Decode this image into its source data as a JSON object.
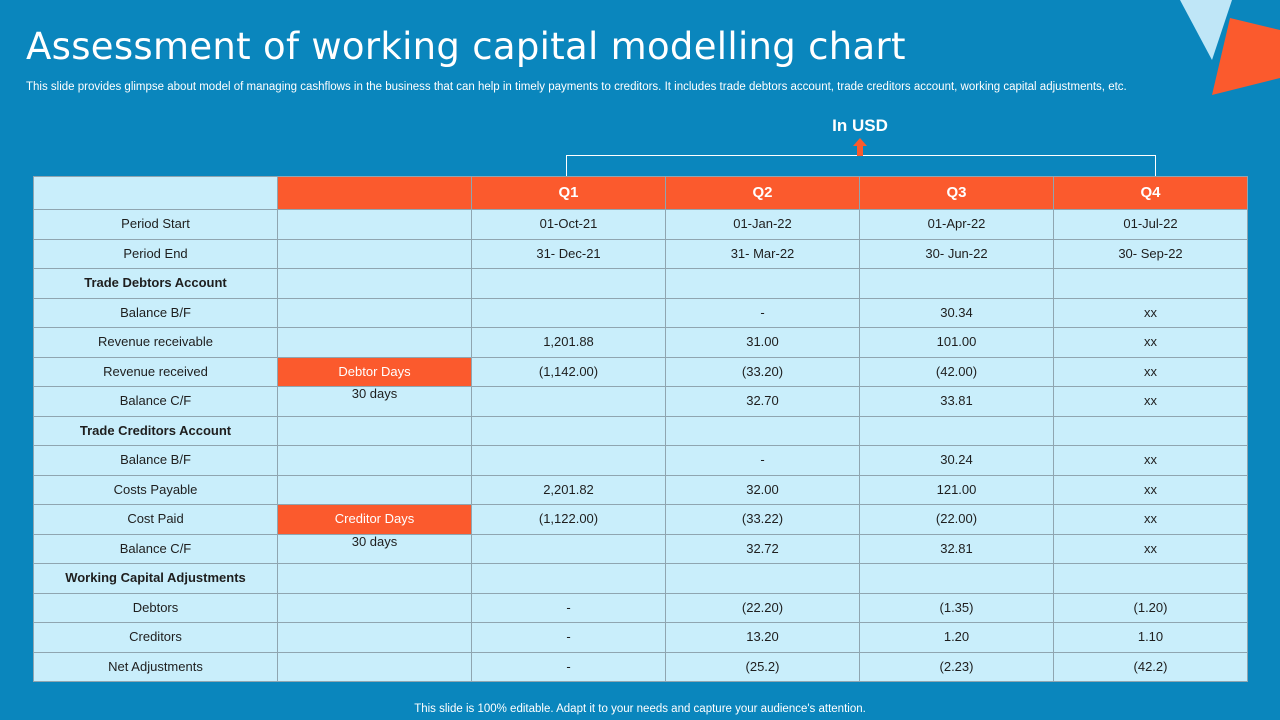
{
  "slide": {
    "title": "Assessment of working capital modelling chart",
    "subtitle": "This slide provides glimpse about model of managing cashflows in the business that can help in timely payments to creditors. It includes trade debtors account, trade creditors account, working capital adjustments, etc.",
    "unit_label": "In USD",
    "footer": "This slide is 100% editable. Adapt it to your needs and capture your audience's attention."
  },
  "colors": {
    "background": "#0a86bd",
    "accent": "#fb5a2d",
    "cell": "#c9eefb",
    "decor_light": "#bfe6f7"
  },
  "icons": [
    "up-arrow-icon",
    "triangle-decoration"
  ],
  "table": {
    "headers": [
      "",
      "",
      "Q1",
      "Q2",
      "Q3",
      "Q4"
    ],
    "rows": [
      {
        "label": "Period Start",
        "note": "",
        "values": [
          "01-Oct-21",
          "01-Jan-22",
          "01-Apr-22",
          "01-Jul-22"
        ]
      },
      {
        "label": "Period End",
        "note": "",
        "values": [
          "31- Dec-21",
          "31- Mar-22",
          "30- Jun-22",
          "30- Sep-22"
        ]
      },
      {
        "label": "Trade Debtors Account",
        "note": "",
        "values": [
          "",
          "",
          "",
          ""
        ]
      },
      {
        "label": "Balance B/F",
        "note": "",
        "values": [
          "",
          "-",
          "30.34",
          "xx"
        ]
      },
      {
        "label": "Revenue  receivable",
        "note": "",
        "values": [
          "1,201.88",
          "31.00",
          "101.00",
          "xx"
        ]
      },
      {
        "label": "Revenue  received",
        "note": "Debtor Days",
        "values": [
          "(1,142.00)",
          "(33.20)",
          "(42.00)",
          "xx"
        ]
      },
      {
        "label": "Balance C/F",
        "note": "30 days",
        "values": [
          "",
          "32.70",
          "33.81",
          "xx"
        ]
      },
      {
        "label": "Trade Creditors Account",
        "note": "",
        "values": [
          "",
          "",
          "",
          ""
        ]
      },
      {
        "label": "Balance B/F",
        "note": "",
        "values": [
          "",
          "-",
          "30.24",
          "xx"
        ]
      },
      {
        "label": "Costs Payable",
        "note": "",
        "values": [
          "2,201.82",
          "32.00",
          "121.00",
          "xx"
        ]
      },
      {
        "label": "Cost Paid",
        "note": "Creditor Days",
        "values": [
          "(1,122.00)",
          "(33.22)",
          "(22.00)",
          "xx"
        ]
      },
      {
        "label": "Balance C/F",
        "note": "30 days",
        "values": [
          "",
          "32.72",
          "32.81",
          "xx"
        ]
      },
      {
        "label": "Working Capital Adjustments",
        "note": "",
        "values": [
          "",
          "",
          "",
          ""
        ]
      },
      {
        "label": "Debtors",
        "note": "",
        "values": [
          "-",
          "(22.20)",
          "(1.35)",
          "(1.20)"
        ]
      },
      {
        "label": "Creditors",
        "note": "",
        "values": [
          "-",
          "13.20",
          "1.20",
          "1.10"
        ]
      },
      {
        "label": "Net Adjustments",
        "note": "",
        "values": [
          "-",
          "(25.2)",
          "(2.23)",
          "(42.2)"
        ]
      }
    ]
  }
}
